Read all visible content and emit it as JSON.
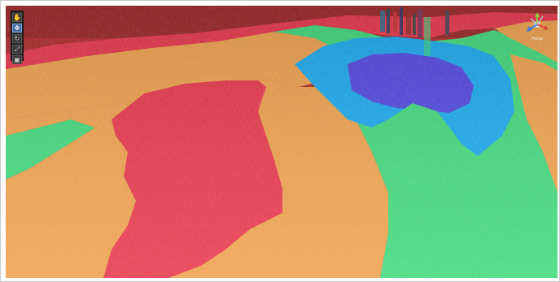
{
  "scene_view": {
    "toolbar": {
      "tools": [
        {
          "name": "hand-tool",
          "glyph": "✋",
          "active": false
        },
        {
          "name": "move-tool",
          "glyph": "✥",
          "active": true
        },
        {
          "name": "rotate-tool",
          "glyph": "↻",
          "active": false
        },
        {
          "name": "scale-tool",
          "glyph": "⤢",
          "active": false
        },
        {
          "name": "rect-tool",
          "glyph": "▣",
          "active": false
        }
      ]
    },
    "gizmo": {
      "label": "Persp",
      "axis_colors": {
        "x": "#e0413a",
        "y": "#8ccf3a",
        "z": "#3a7de0"
      }
    },
    "terrain_colors": {
      "red": "#e8354a",
      "orange": "#f0a04b",
      "green": "#3fd97a",
      "cyan": "#18a9ef",
      "blue": "#5046e0",
      "sky": "#b22a2a"
    }
  }
}
